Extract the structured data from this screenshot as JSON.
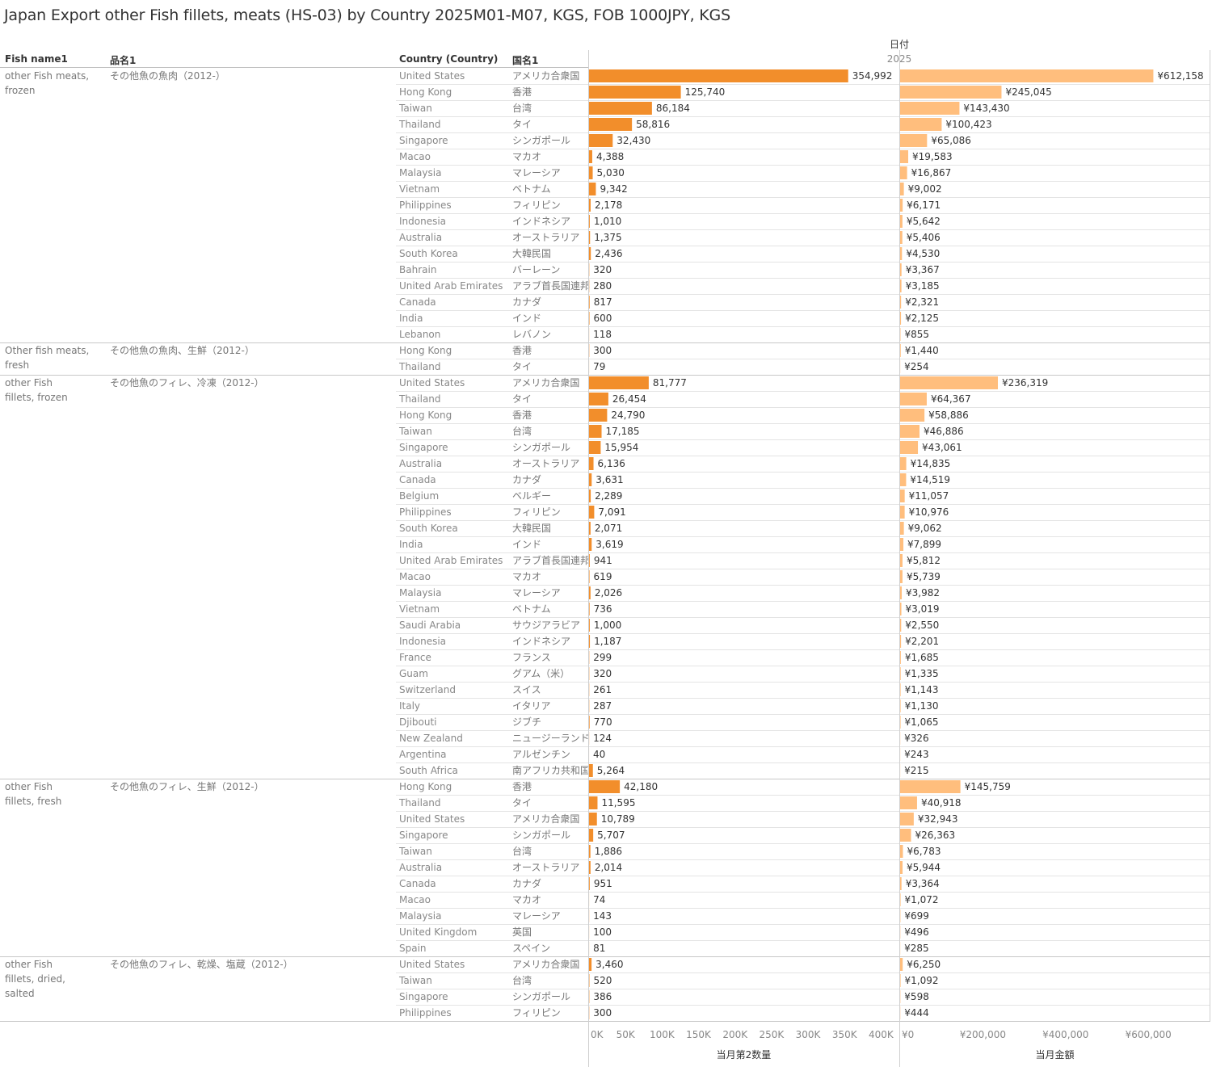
{
  "title": "Japan Export other Fish fillets, meats (HS-03) by Country 2025M01-M07, KGS, FOB 1000JPY, KGS",
  "headers": {
    "fish_name": "Fish name1",
    "hinmei": "品名1",
    "country": "Country (Country)",
    "kokumei": "国名1",
    "date": "日付",
    "year": "2025"
  },
  "chart_data": {
    "type": "bar",
    "orientation": "horizontal",
    "title": "Japan Export other Fish fillets, meats (HS-03) by Country 2025M01-M07, KGS, FOB 1000JPY, KGS",
    "panels": [
      {
        "measure": "当月第2数量",
        "axis_label": "当月第2数量",
        "xlim": [
          0,
          425000
        ],
        "ticks": [
          0,
          50000,
          100000,
          150000,
          200000,
          250000,
          300000,
          350000,
          400000
        ],
        "tick_labels": [
          "0K",
          "50K",
          "100K",
          "150K",
          "200K",
          "250K",
          "300K",
          "350K",
          "400K"
        ],
        "color": "#f28e2b"
      },
      {
        "measure": "当月金額",
        "axis_label": "当月金額",
        "xlim": [
          0,
          750000
        ],
        "ticks": [
          0,
          200000,
          400000,
          600000
        ],
        "tick_labels": [
          "¥0",
          "¥200,000",
          "¥400,000",
          "¥600,000"
        ],
        "color": "#ffbe7d"
      }
    ],
    "groups": [
      {
        "fish_name": "other Fish meats, frozen",
        "hinmei": "その他魚の魚肉（2012-）",
        "rows": [
          {
            "country": "United States",
            "kokumei": "アメリカ合衆国",
            "qty": 354992,
            "qty_label": "354,992",
            "amt": 612158,
            "amt_label": "¥612,158"
          },
          {
            "country": "Hong Kong",
            "kokumei": "香港",
            "qty": 125740,
            "qty_label": "125,740",
            "amt": 245045,
            "amt_label": "¥245,045"
          },
          {
            "country": "Taiwan",
            "kokumei": "台湾",
            "qty": 86184,
            "qty_label": "86,184",
            "amt": 143430,
            "amt_label": "¥143,430"
          },
          {
            "country": "Thailand",
            "kokumei": "タイ",
            "qty": 58816,
            "qty_label": "58,816",
            "amt": 100423,
            "amt_label": "¥100,423"
          },
          {
            "country": "Singapore",
            "kokumei": "シンガポール",
            "qty": 32430,
            "qty_label": "32,430",
            "amt": 65086,
            "amt_label": "¥65,086"
          },
          {
            "country": "Macao",
            "kokumei": "マカオ",
            "qty": 4388,
            "qty_label": "4,388",
            "amt": 19583,
            "amt_label": "¥19,583"
          },
          {
            "country": "Malaysia",
            "kokumei": "マレーシア",
            "qty": 5030,
            "qty_label": "5,030",
            "amt": 16867,
            "amt_label": "¥16,867"
          },
          {
            "country": "Vietnam",
            "kokumei": "ベトナム",
            "qty": 9342,
            "qty_label": "9,342",
            "amt": 9002,
            "amt_label": "¥9,002"
          },
          {
            "country": "Philippines",
            "kokumei": "フィリピン",
            "qty": 2178,
            "qty_label": "2,178",
            "amt": 6171,
            "amt_label": "¥6,171"
          },
          {
            "country": "Indonesia",
            "kokumei": "インドネシア",
            "qty": 1010,
            "qty_label": "1,010",
            "amt": 5642,
            "amt_label": "¥5,642"
          },
          {
            "country": "Australia",
            "kokumei": "オーストラリア",
            "qty": 1375,
            "qty_label": "1,375",
            "amt": 5406,
            "amt_label": "¥5,406"
          },
          {
            "country": "South Korea",
            "kokumei": "大韓民国",
            "qty": 2436,
            "qty_label": "2,436",
            "amt": 4530,
            "amt_label": "¥4,530"
          },
          {
            "country": "Bahrain",
            "kokumei": "バーレーン",
            "qty": 320,
            "qty_label": "320",
            "amt": 3367,
            "amt_label": "¥3,367"
          },
          {
            "country": "United Arab Emirates",
            "kokumei": "アラブ首長国連邦",
            "qty": 280,
            "qty_label": "280",
            "amt": 3185,
            "amt_label": "¥3,185"
          },
          {
            "country": "Canada",
            "kokumei": "カナダ",
            "qty": 817,
            "qty_label": "817",
            "amt": 2321,
            "amt_label": "¥2,321"
          },
          {
            "country": "India",
            "kokumei": "インド",
            "qty": 600,
            "qty_label": "600",
            "amt": 2125,
            "amt_label": "¥2,125"
          },
          {
            "country": "Lebanon",
            "kokumei": "レバノン",
            "qty": 118,
            "qty_label": "118",
            "amt": 855,
            "amt_label": "¥855"
          }
        ]
      },
      {
        "fish_name": "Other fish meats, fresh",
        "hinmei": "その他魚の魚肉、生鮮（2012-）",
        "rows": [
          {
            "country": "Hong Kong",
            "kokumei": "香港",
            "qty": 300,
            "qty_label": "300",
            "amt": 1440,
            "amt_label": "¥1,440"
          },
          {
            "country": "Thailand",
            "kokumei": "タイ",
            "qty": 79,
            "qty_label": "79",
            "amt": 254,
            "amt_label": "¥254"
          }
        ]
      },
      {
        "fish_name": "other Fish fillets, frozen",
        "hinmei": "その他魚のフィレ、冷凍（2012-）",
        "rows": [
          {
            "country": "United States",
            "kokumei": "アメリカ合衆国",
            "qty": 81777,
            "qty_label": "81,777",
            "amt": 236319,
            "amt_label": "¥236,319"
          },
          {
            "country": "Thailand",
            "kokumei": "タイ",
            "qty": 26454,
            "qty_label": "26,454",
            "amt": 64367,
            "amt_label": "¥64,367"
          },
          {
            "country": "Hong Kong",
            "kokumei": "香港",
            "qty": 24790,
            "qty_label": "24,790",
            "amt": 58886,
            "amt_label": "¥58,886"
          },
          {
            "country": "Taiwan",
            "kokumei": "台湾",
            "qty": 17185,
            "qty_label": "17,185",
            "amt": 46886,
            "amt_label": "¥46,886"
          },
          {
            "country": "Singapore",
            "kokumei": "シンガポール",
            "qty": 15954,
            "qty_label": "15,954",
            "amt": 43061,
            "amt_label": "¥43,061"
          },
          {
            "country": "Australia",
            "kokumei": "オーストラリア",
            "qty": 6136,
            "qty_label": "6,136",
            "amt": 14835,
            "amt_label": "¥14,835"
          },
          {
            "country": "Canada",
            "kokumei": "カナダ",
            "qty": 3631,
            "qty_label": "3,631",
            "amt": 14519,
            "amt_label": "¥14,519"
          },
          {
            "country": "Belgium",
            "kokumei": "ベルギー",
            "qty": 2289,
            "qty_label": "2,289",
            "amt": 11057,
            "amt_label": "¥11,057"
          },
          {
            "country": "Philippines",
            "kokumei": "フィリピン",
            "qty": 7091,
            "qty_label": "7,091",
            "amt": 10976,
            "amt_label": "¥10,976"
          },
          {
            "country": "South Korea",
            "kokumei": "大韓民国",
            "qty": 2071,
            "qty_label": "2,071",
            "amt": 9062,
            "amt_label": "¥9,062"
          },
          {
            "country": "India",
            "kokumei": "インド",
            "qty": 3619,
            "qty_label": "3,619",
            "amt": 7899,
            "amt_label": "¥7,899"
          },
          {
            "country": "United Arab Emirates",
            "kokumei": "アラブ首長国連邦",
            "qty": 941,
            "qty_label": "941",
            "amt": 5812,
            "amt_label": "¥5,812"
          },
          {
            "country": "Macao",
            "kokumei": "マカオ",
            "qty": 619,
            "qty_label": "619",
            "amt": 5739,
            "amt_label": "¥5,739"
          },
          {
            "country": "Malaysia",
            "kokumei": "マレーシア",
            "qty": 2026,
            "qty_label": "2,026",
            "amt": 3982,
            "amt_label": "¥3,982"
          },
          {
            "country": "Vietnam",
            "kokumei": "ベトナム",
            "qty": 736,
            "qty_label": "736",
            "amt": 3019,
            "amt_label": "¥3,019"
          },
          {
            "country": "Saudi Arabia",
            "kokumei": "サウジアラビア",
            "qty": 1000,
            "qty_label": "1,000",
            "amt": 2550,
            "amt_label": "¥2,550"
          },
          {
            "country": "Indonesia",
            "kokumei": "インドネシア",
            "qty": 1187,
            "qty_label": "1,187",
            "amt": 2201,
            "amt_label": "¥2,201"
          },
          {
            "country": "France",
            "kokumei": "フランス",
            "qty": 299,
            "qty_label": "299",
            "amt": 1685,
            "amt_label": "¥1,685"
          },
          {
            "country": "Guam",
            "kokumei": "グアム（米）",
            "qty": 320,
            "qty_label": "320",
            "amt": 1335,
            "amt_label": "¥1,335"
          },
          {
            "country": "Switzerland",
            "kokumei": "スイス",
            "qty": 261,
            "qty_label": "261",
            "amt": 1143,
            "amt_label": "¥1,143"
          },
          {
            "country": "Italy",
            "kokumei": "イタリア",
            "qty": 287,
            "qty_label": "287",
            "amt": 1130,
            "amt_label": "¥1,130"
          },
          {
            "country": "Djibouti",
            "kokumei": "ジブチ",
            "qty": 770,
            "qty_label": "770",
            "amt": 1065,
            "amt_label": "¥1,065"
          },
          {
            "country": "New Zealand",
            "kokumei": "ニュージーランド",
            "qty": 124,
            "qty_label": "124",
            "amt": 326,
            "amt_label": "¥326"
          },
          {
            "country": "Argentina",
            "kokumei": "アルゼンチン",
            "qty": 40,
            "qty_label": "40",
            "amt": 243,
            "amt_label": "¥243"
          },
          {
            "country": "South Africa",
            "kokumei": "南アフリカ共和国",
            "qty": 5264,
            "qty_label": "5,264",
            "amt": 215,
            "amt_label": "¥215"
          }
        ]
      },
      {
        "fish_name": "other Fish fillets, fresh",
        "hinmei": "その他魚のフィレ、生鮮（2012-）",
        "rows": [
          {
            "country": "Hong Kong",
            "kokumei": "香港",
            "qty": 42180,
            "qty_label": "42,180",
            "amt": 145759,
            "amt_label": "¥145,759"
          },
          {
            "country": "Thailand",
            "kokumei": "タイ",
            "qty": 11595,
            "qty_label": "11,595",
            "amt": 40918,
            "amt_label": "¥40,918"
          },
          {
            "country": "United States",
            "kokumei": "アメリカ合衆国",
            "qty": 10789,
            "qty_label": "10,789",
            "amt": 32943,
            "amt_label": "¥32,943"
          },
          {
            "country": "Singapore",
            "kokumei": "シンガポール",
            "qty": 5707,
            "qty_label": "5,707",
            "amt": 26363,
            "amt_label": "¥26,363"
          },
          {
            "country": "Taiwan",
            "kokumei": "台湾",
            "qty": 1886,
            "qty_label": "1,886",
            "amt": 6783,
            "amt_label": "¥6,783"
          },
          {
            "country": "Australia",
            "kokumei": "オーストラリア",
            "qty": 2014,
            "qty_label": "2,014",
            "amt": 5944,
            "amt_label": "¥5,944"
          },
          {
            "country": "Canada",
            "kokumei": "カナダ",
            "qty": 951,
            "qty_label": "951",
            "amt": 3364,
            "amt_label": "¥3,364"
          },
          {
            "country": "Macao",
            "kokumei": "マカオ",
            "qty": 74,
            "qty_label": "74",
            "amt": 1072,
            "amt_label": "¥1,072"
          },
          {
            "country": "Malaysia",
            "kokumei": "マレーシア",
            "qty": 143,
            "qty_label": "143",
            "amt": 699,
            "amt_label": "¥699"
          },
          {
            "country": "United Kingdom",
            "kokumei": "英国",
            "qty": 100,
            "qty_label": "100",
            "amt": 496,
            "amt_label": "¥496"
          },
          {
            "country": "Spain",
            "kokumei": "スペイン",
            "qty": 81,
            "qty_label": "81",
            "amt": 285,
            "amt_label": "¥285"
          }
        ]
      },
      {
        "fish_name": "other Fish fillets, dried, salted",
        "hinmei": "その他魚のフィレ、乾燥、塩蔵（2012-）",
        "rows": [
          {
            "country": "United States",
            "kokumei": "アメリカ合衆国",
            "qty": 3460,
            "qty_label": "3,460",
            "amt": 6250,
            "amt_label": "¥6,250"
          },
          {
            "country": "Taiwan",
            "kokumei": "台湾",
            "qty": 520,
            "qty_label": "520",
            "amt": 1092,
            "amt_label": "¥1,092"
          },
          {
            "country": "Singapore",
            "kokumei": "シンガポール",
            "qty": 386,
            "qty_label": "386",
            "amt": 598,
            "amt_label": "¥598"
          },
          {
            "country": "Philippines",
            "kokumei": "フィリピン",
            "qty": 300,
            "qty_label": "300",
            "amt": 444,
            "amt_label": "¥444"
          }
        ]
      }
    ]
  }
}
